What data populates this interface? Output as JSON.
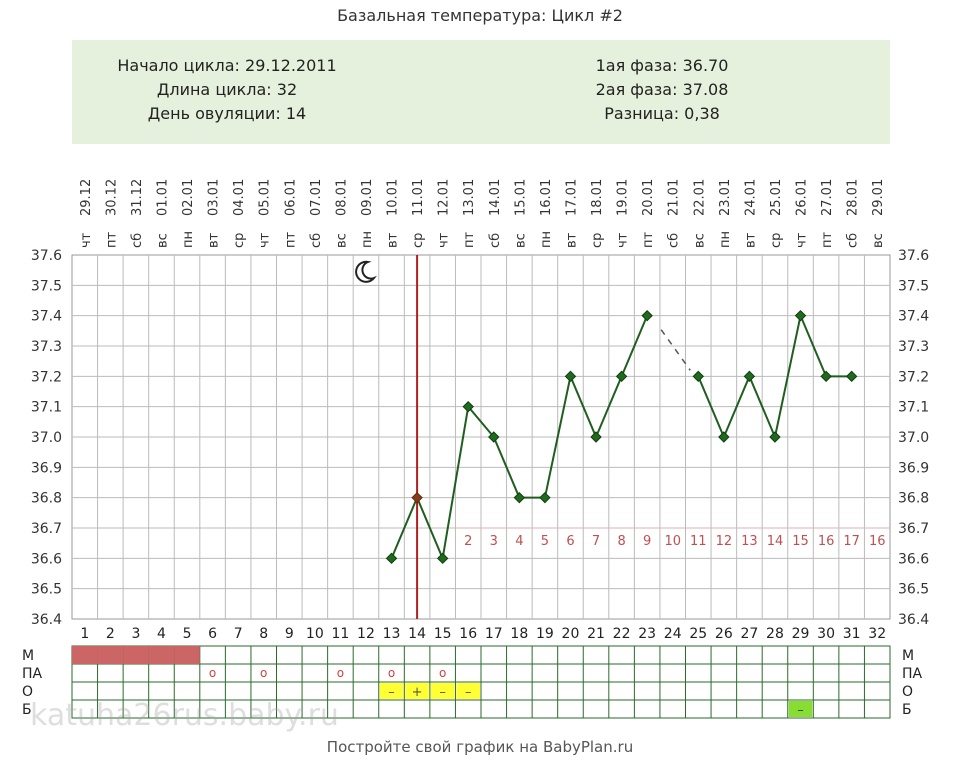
{
  "title": "Базальная температура: Цикл #2",
  "info": {
    "cycle_start": "Начало цикла: 29.12.2011",
    "cycle_length": "Длина цикла: 32",
    "ovulation_day": "День овуляции: 14",
    "phase1": "1ая фаза: 36.70",
    "phase2": "2ая фаза: 37.08",
    "difference": "Разница: 0,38"
  },
  "footer": "Постройте свой график на BabyPlan.ru",
  "watermark": "katuha26rus.baby.ru",
  "colors": {
    "line": "#1f5e1f",
    "point": "#1f6a1f",
    "ovulation_line": "#b01e1e",
    "ovulation_point": "#8b3a1a",
    "menses": "#cc6666",
    "grid": "#bbbbbb",
    "cm_yellow": "#ffff33",
    "cm_green": "#88dd33",
    "phase2_numbers": "#c05050",
    "info_bg": "#e6f1dd"
  },
  "chart_data": {
    "type": "line",
    "dates": [
      "29.12",
      "30.12",
      "31.12",
      "01.01",
      "02.01",
      "03.01",
      "04.01",
      "05.01",
      "06.01",
      "07.01",
      "08.01",
      "09.01",
      "10.01",
      "11.01",
      "12.01",
      "13.01",
      "14.01",
      "15.01",
      "16.01",
      "17.01",
      "18.01",
      "19.01",
      "20.01",
      "21.01",
      "22.01",
      "23.01",
      "24.01",
      "25.01",
      "26.01",
      "27.01",
      "28.01",
      "29.01"
    ],
    "weekdays": [
      "чт",
      "пт",
      "сб",
      "вс",
      "пн",
      "вт",
      "ср",
      "чт",
      "пт",
      "сб",
      "вс",
      "пн",
      "вт",
      "ср",
      "чт",
      "пт",
      "сб",
      "вс",
      "пн",
      "вт",
      "ср",
      "чт",
      "пт",
      "сб",
      "вс",
      "пн",
      "вт",
      "ср",
      "чт",
      "пт",
      "сб",
      "вс"
    ],
    "days": [
      1,
      2,
      3,
      4,
      5,
      6,
      7,
      8,
      9,
      10,
      11,
      12,
      13,
      14,
      15,
      16,
      17,
      18,
      19,
      20,
      21,
      22,
      23,
      24,
      25,
      26,
      27,
      28,
      29,
      30,
      31,
      32
    ],
    "temperatures": [
      null,
      null,
      null,
      null,
      null,
      null,
      null,
      null,
      null,
      null,
      null,
      null,
      36.6,
      36.8,
      36.6,
      37.1,
      37.0,
      36.8,
      36.8,
      37.2,
      37.0,
      37.2,
      37.4,
      null,
      37.2,
      37.0,
      37.2,
      37.0,
      37.4,
      37.2,
      37.2,
      null
    ],
    "dashed_gap": [
      23,
      25
    ],
    "ovulation_day": 14,
    "phase2_start_day": 16,
    "phase2_numbers": [
      "2",
      "3",
      "4",
      "5",
      "6",
      "7",
      "8",
      "9",
      "10",
      "11",
      "12",
      "13",
      "14",
      "15",
      "16",
      "17",
      "16"
    ],
    "y_ticks": [
      "37.6",
      "37.5",
      "37.4",
      "37.3",
      "37.2",
      "37.1",
      "37.0",
      "36.9",
      "36.8",
      "36.7",
      "36.6",
      "36.5",
      "36.4"
    ],
    "ylim": [
      36.4,
      37.6
    ],
    "moon_day": 12,
    "bottom_rows": {
      "labels": [
        "М",
        "ПА",
        "О",
        "Б"
      ],
      "menses_days": [
        1,
        2,
        3,
        4,
        5
      ],
      "pa_days": [
        6,
        8,
        11,
        13,
        15
      ],
      "pa_marker": "o",
      "cm_days": [
        13,
        14,
        15,
        16
      ],
      "cm_marks": [
        "–",
        "+",
        "–",
        "–"
      ],
      "b_days": [
        29
      ],
      "b_marks": [
        "–"
      ]
    }
  }
}
